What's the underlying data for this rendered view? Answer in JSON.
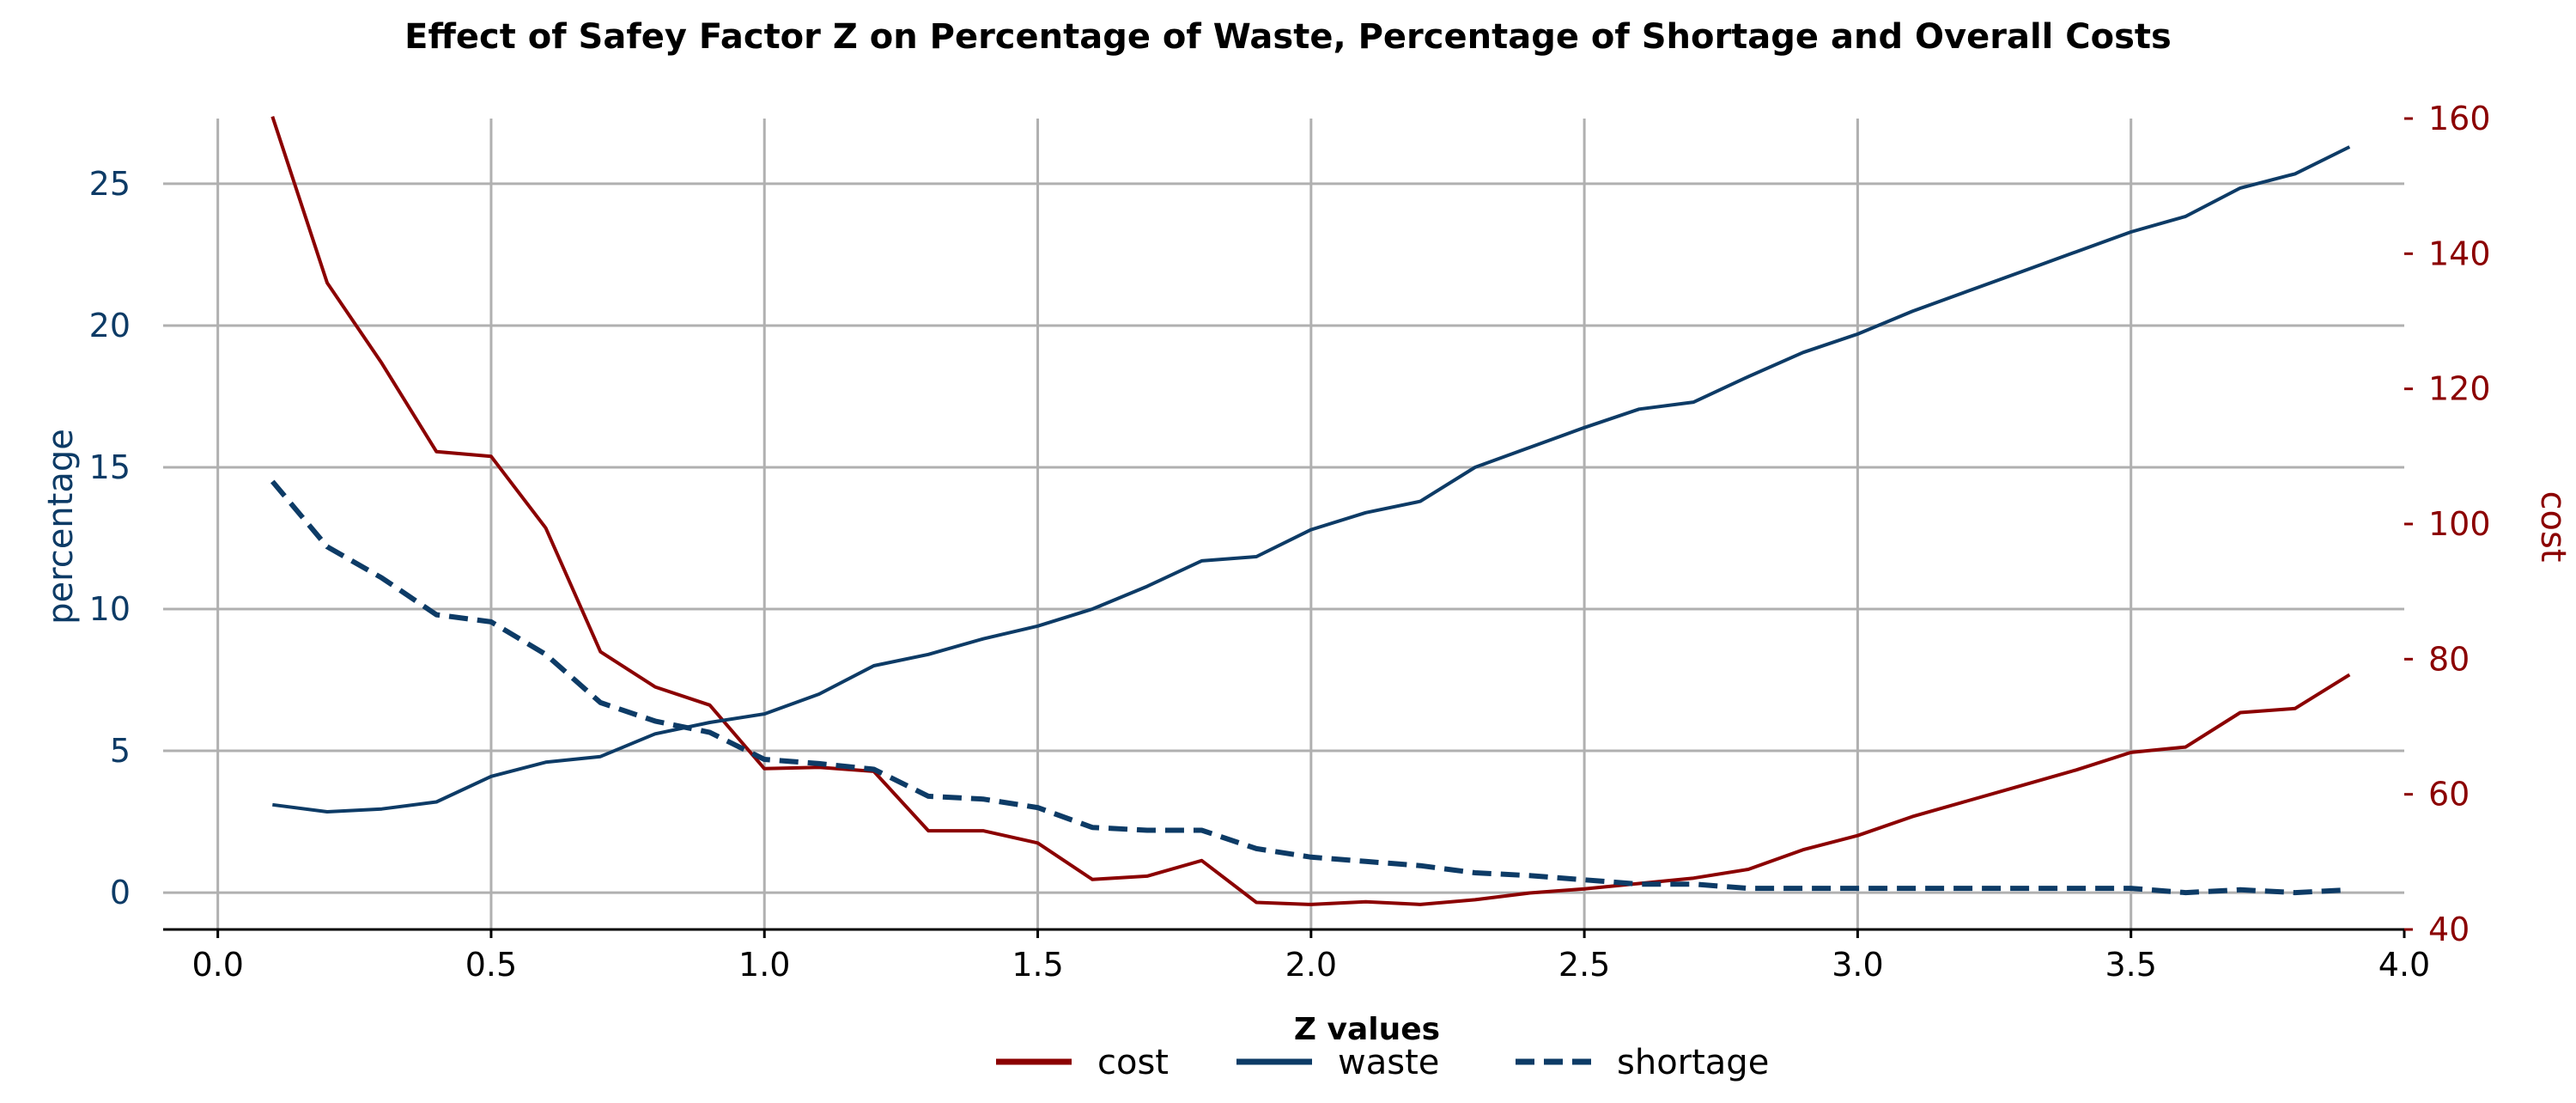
{
  "chart_data": {
    "type": "line",
    "title": "Effect of Safey Factor Z on Percentage of Waste, Percentage of Shortage and Overall Costs",
    "xlabel": "Z values",
    "ylabel_left": "percentage",
    "ylabel_right": "cost",
    "xlim": [
      -0.1,
      4.0
    ],
    "ylim_left": [
      -1.3,
      27.3
    ],
    "ylim_right": [
      40,
      160
    ],
    "x_ticks": [
      0.0,
      0.5,
      1.0,
      1.5,
      2.0,
      2.5,
      3.0,
      3.5,
      4.0
    ],
    "x_tick_labels": [
      "0.0",
      "0.5",
      "1.0",
      "1.5",
      "2.0",
      "2.5",
      "3.0",
      "3.5",
      "4.0"
    ],
    "y_left_ticks": [
      0,
      5,
      10,
      15,
      20,
      25
    ],
    "y_left_tick_labels": [
      "0",
      "5",
      "10",
      "15",
      "20",
      "25"
    ],
    "y_right_ticks": [
      40,
      60,
      80,
      100,
      120,
      140,
      160
    ],
    "y_right_tick_labels": [
      "40",
      "60",
      "80",
      "100",
      "120",
      "140",
      "160"
    ],
    "grid": true,
    "legend_position": "bottom-center",
    "x": [
      0.1,
      0.2,
      0.3,
      0.4,
      0.5,
      0.6,
      0.7,
      0.8,
      0.9,
      1.0,
      1.1,
      1.2,
      1.3,
      1.4,
      1.5,
      1.6,
      1.7,
      1.8,
      1.9,
      2.0,
      2.1,
      2.2,
      2.3,
      2.4,
      2.5,
      2.6,
      2.7,
      2.8,
      2.9,
      3.0,
      3.1,
      3.2,
      3.3,
      3.4,
      3.5,
      3.6,
      3.7,
      3.8,
      3.9
    ],
    "series": [
      {
        "name": "cost",
        "axis": "right",
        "color": "#8b0000",
        "style": "solid",
        "values": [
          160.3,
          135.7,
          123.8,
          110.7,
          110.0,
          99.4,
          81.1,
          75.9,
          73.2,
          63.8,
          64.0,
          63.4,
          54.6,
          54.6,
          52.8,
          47.4,
          47.9,
          50.2,
          44.0,
          43.7,
          44.1,
          43.7,
          44.4,
          45.4,
          46.0,
          46.8,
          47.6,
          48.9,
          51.8,
          53.9,
          56.7,
          59.0,
          61.3,
          63.6,
          66.2,
          67.0,
          72.1,
          72.7,
          77.7
        ]
      },
      {
        "name": "waste",
        "axis": "left",
        "color": "#0d3b66",
        "style": "solid",
        "values": [
          3.1,
          2.85,
          2.95,
          3.2,
          4.1,
          4.6,
          4.8,
          5.6,
          6.0,
          6.3,
          7.0,
          8.0,
          8.4,
          8.95,
          9.4,
          10.0,
          10.8,
          11.7,
          11.85,
          12.8,
          13.4,
          13.8,
          15.0,
          15.7,
          16.4,
          17.05,
          17.3,
          18.2,
          19.05,
          19.7,
          20.5,
          21.2,
          21.9,
          22.6,
          23.3,
          23.85,
          24.85,
          25.35,
          26.3
        ]
      },
      {
        "name": "shortage",
        "axis": "left",
        "color": "#0d3b66",
        "style": "dashed",
        "values": [
          14.5,
          12.2,
          11.1,
          9.8,
          9.55,
          8.4,
          6.7,
          6.05,
          5.65,
          4.7,
          4.55,
          4.35,
          3.4,
          3.3,
          3.0,
          2.3,
          2.2,
          2.2,
          1.55,
          1.25,
          1.1,
          0.95,
          0.7,
          0.6,
          0.45,
          0.3,
          0.3,
          0.15,
          0.15,
          0.15,
          0.15,
          0.15,
          0.15,
          0.15,
          0.15,
          0.0,
          0.1,
          0.0,
          0.1
        ]
      }
    ]
  }
}
